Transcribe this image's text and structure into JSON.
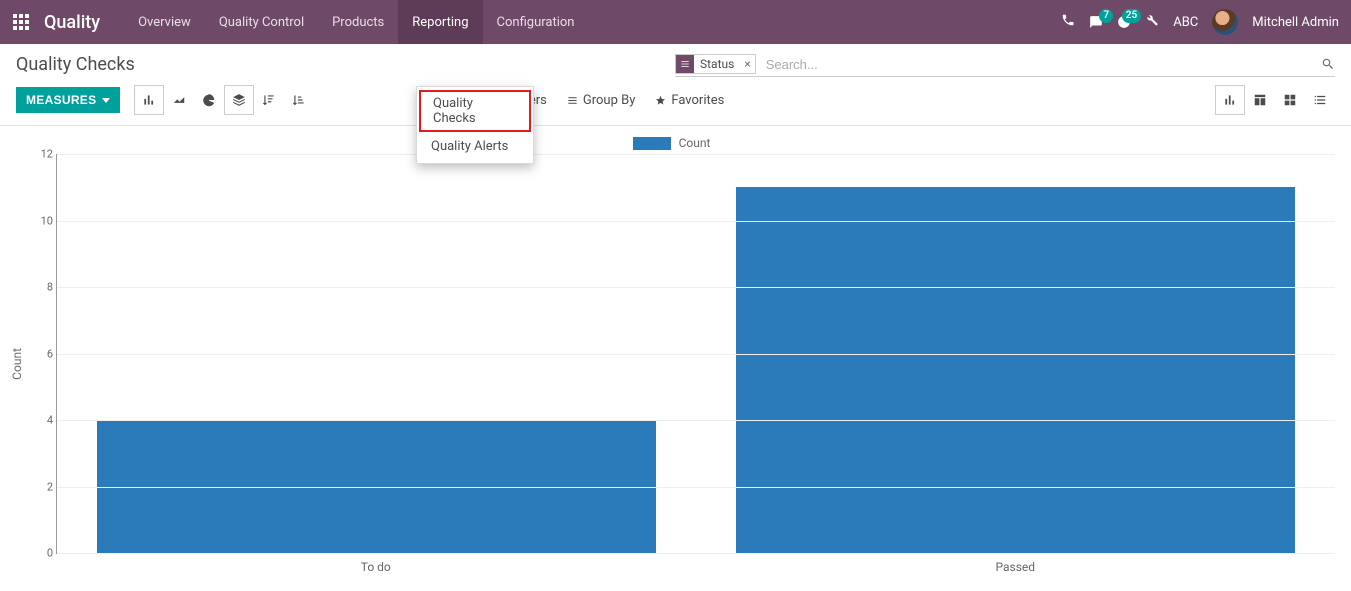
{
  "brand": "Quality",
  "nav": [
    "Overview",
    "Quality Control",
    "Products",
    "Reporting",
    "Configuration"
  ],
  "nav_active_index": 3,
  "topbar": {
    "messages_count": "7",
    "activities_count": "25",
    "company": "ABC",
    "user": "Mitchell Admin"
  },
  "page_title": "Quality Checks",
  "dropdown": {
    "items": [
      "Quality Checks",
      "Quality Alerts"
    ],
    "highlight_index": 0
  },
  "search": {
    "facet_label": "Status",
    "placeholder": "Search..."
  },
  "measures_label": "MEASURES",
  "option_buttons": [
    "Filters",
    "Group By",
    "Favorites"
  ],
  "chart": {
    "type": "bar",
    "legend_label": "Count",
    "y_axis_title": "Count",
    "categories": [
      "To do",
      "Passed"
    ],
    "values": [
      4,
      11
    ],
    "y_max": 12,
    "y_ticks": [
      0,
      2,
      4,
      6,
      8,
      10,
      12
    ],
    "bar_color": "#2b7bba",
    "grid_color": "#eeeeee",
    "axis_color": "#999999",
    "background_color": "#ffffff"
  },
  "colors": {
    "topbar_bg": "#6f4968",
    "accent": "#00a09d",
    "highlight_border": "#e41b1b"
  }
}
